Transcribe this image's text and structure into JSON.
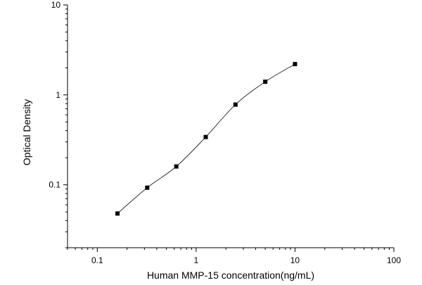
{
  "chart_data": {
    "type": "scatter",
    "xlabel": "Human MMP-15 concentration(ng/mL)",
    "ylabel": "Optical Density",
    "x_scale": "log",
    "y_scale": "log",
    "xlim": [
      0.05,
      100
    ],
    "ylim": [
      0.02,
      10
    ],
    "x_ticks": [
      {
        "value": 0.1,
        "label": "0.1"
      },
      {
        "value": 1,
        "label": "1"
      },
      {
        "value": 10,
        "label": "10"
      },
      {
        "value": 100,
        "label": "100"
      }
    ],
    "y_ticks": [
      {
        "value": 0.1,
        "label": "0.1"
      },
      {
        "value": 1,
        "label": "1"
      },
      {
        "value": 10,
        "label": "10"
      }
    ],
    "grid": false,
    "series": [
      {
        "marker": "square",
        "fitted_curve": true,
        "points": [
          {
            "x": 0.16,
            "y": 0.048
          },
          {
            "x": 0.32,
            "y": 0.093
          },
          {
            "x": 0.63,
            "y": 0.16
          },
          {
            "x": 1.25,
            "y": 0.34
          },
          {
            "x": 2.5,
            "y": 0.78
          },
          {
            "x": 5,
            "y": 1.4
          },
          {
            "x": 10,
            "y": 2.2
          }
        ]
      }
    ],
    "colors": {
      "axis": "#000000",
      "marker": "#000000",
      "curve": "#000000"
    }
  }
}
